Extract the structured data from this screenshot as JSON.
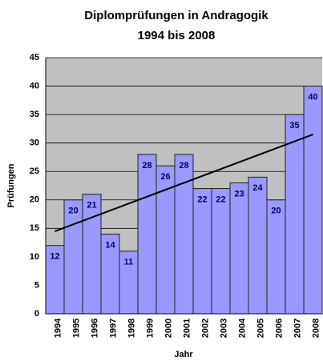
{
  "chart_data": {
    "type": "bar",
    "title": "Diplomprüfungen in Andragogik",
    "subtitle": "1994 bis 2008",
    "x_label": "Jahr",
    "y_label": "Prüfungen",
    "categories": [
      "1994",
      "1995",
      "1996",
      "1997",
      "1998",
      "1999",
      "2000",
      "2001",
      "2002",
      "2003",
      "2004",
      "2005",
      "2006",
      "2007",
      "2008"
    ],
    "values": [
      12,
      20,
      21,
      14,
      11,
      28,
      26,
      28,
      22,
      22,
      23,
      24,
      20,
      35,
      40
    ],
    "color": "#9999ff",
    "trendline": [
      14.5,
      31.5
    ],
    "ylim": [
      0,
      45
    ],
    "yticks": [
      0,
      5,
      10,
      15,
      20,
      25,
      30,
      35,
      40,
      45
    ],
    "grid": true
  }
}
